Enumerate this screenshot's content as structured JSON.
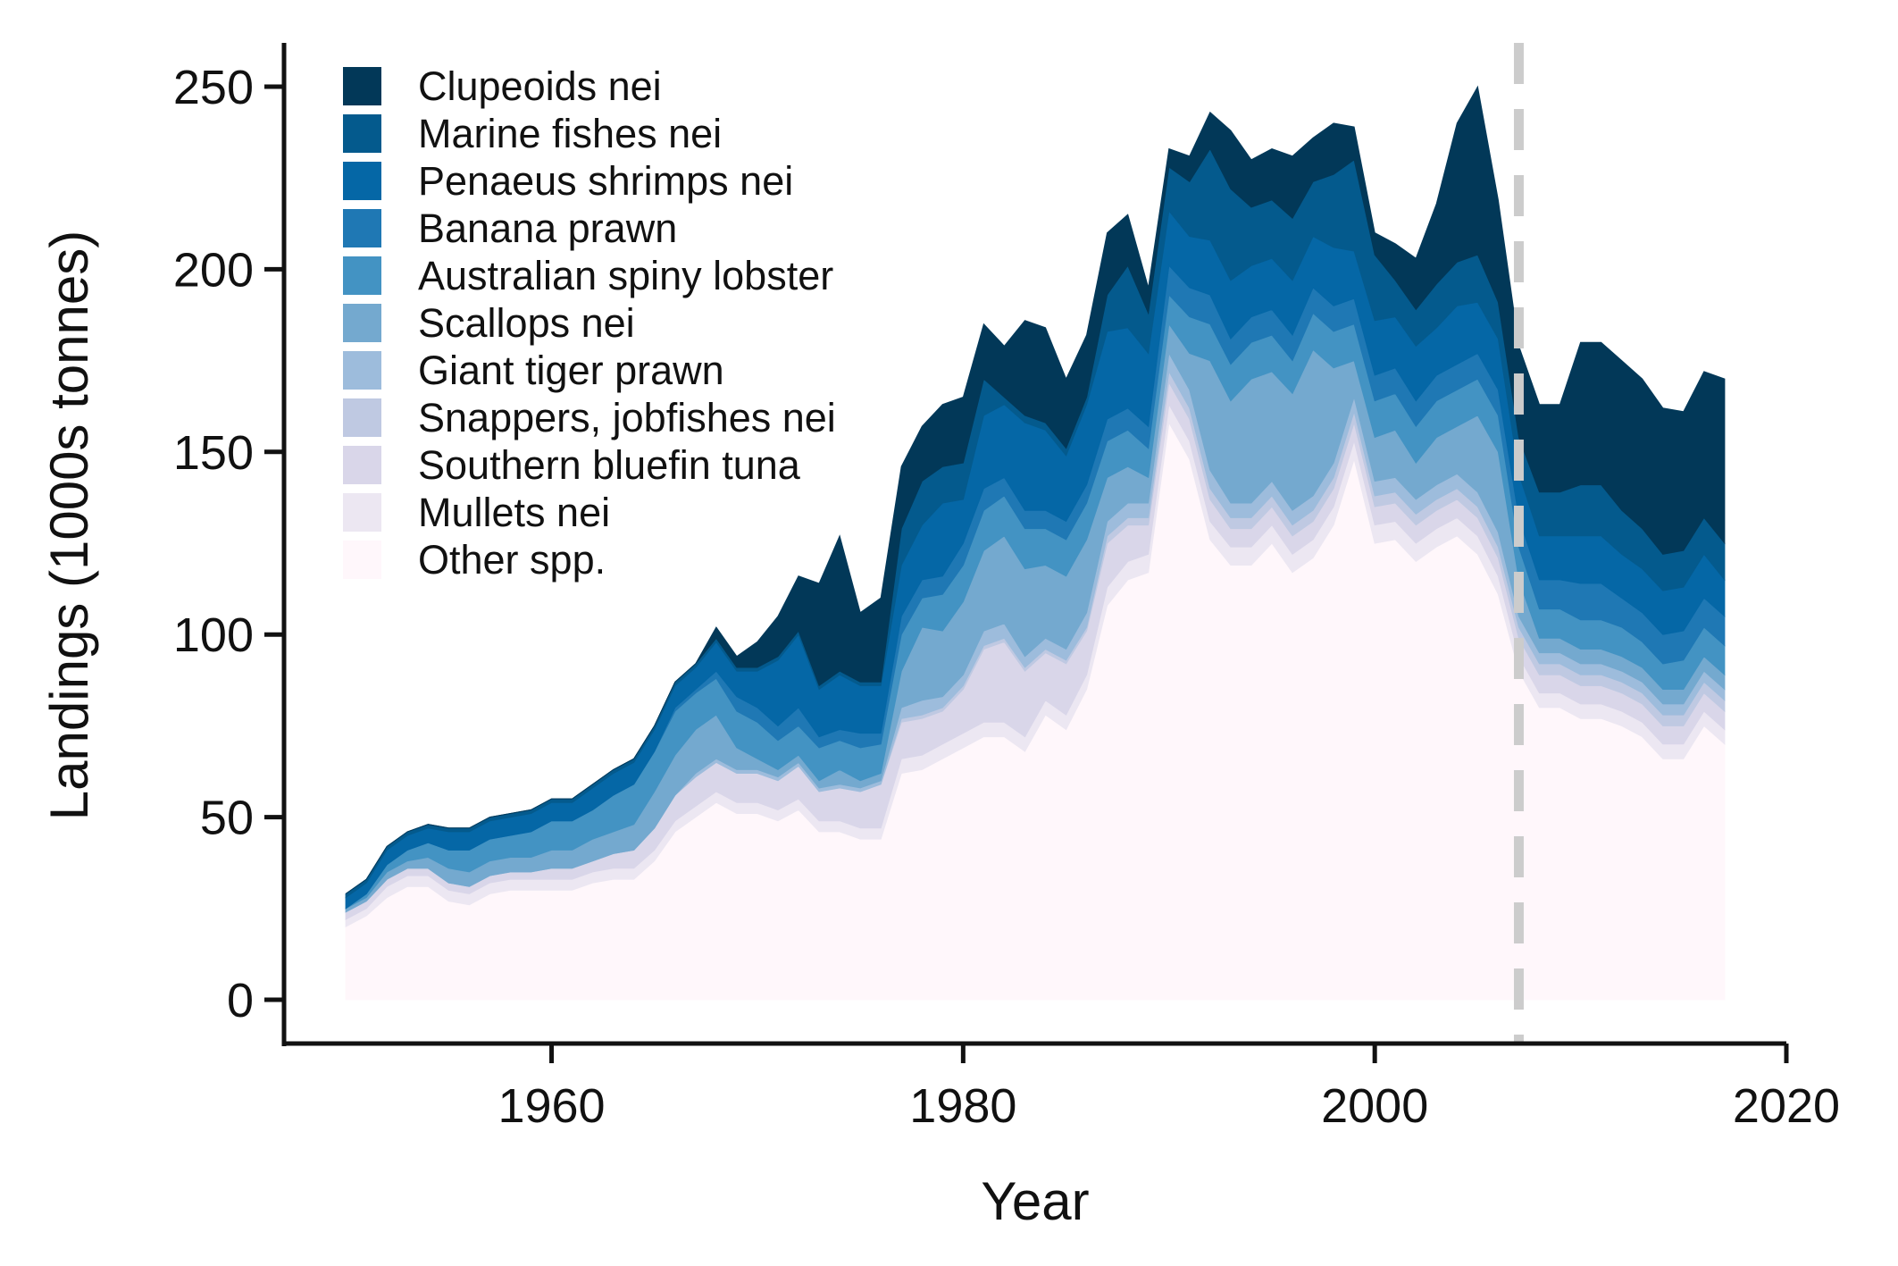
{
  "chart_data": {
    "type": "area",
    "stacked": true,
    "xlabel": "Year",
    "ylabel": "Landings (1000s tonnes)",
    "xlim": [
      1947,
      2020
    ],
    "ylim": [
      -12,
      262
    ],
    "x_ticks": [
      1960,
      1980,
      2000,
      2020
    ],
    "y_ticks": [
      0,
      50,
      100,
      150,
      200,
      250
    ],
    "grid": false,
    "legend_position": "top-left",
    "reference_line": {
      "x": 2007,
      "style": "dashed",
      "color": "#cccccc"
    },
    "keyframes": [
      1950,
      1951,
      1952,
      1953,
      1954,
      1955,
      1956,
      1957,
      1958,
      1959,
      1960,
      1961,
      1962,
      1963,
      1964,
      1965,
      1966,
      1967,
      1968,
      1969,
      1970,
      1971,
      1972,
      1973,
      1974,
      1975,
      1976,
      1977,
      1978,
      1979,
      1980,
      1981,
      1982,
      1983,
      1984,
      1985,
      1986,
      1987,
      1988,
      1989,
      1990,
      1991,
      1992,
      1993,
      1994,
      1995,
      1996,
      1997,
      1998,
      1999,
      2000,
      2001,
      2002,
      2003,
      2004,
      2005,
      2006,
      2007,
      2008,
      2009,
      2010,
      2011,
      2012,
      2013,
      2014,
      2015,
      2016,
      2017
    ],
    "legend_order": [
      "Clupeoids nei",
      "Marine fishes nei",
      "Penaeus shrimps nei",
      "Banana prawn",
      "Australian spiny lobster",
      "Scallops nei",
      "Giant tiger prawn",
      "Snappers, jobfishes nei",
      "Southern bluefin tuna",
      "Mullets nei",
      "Other spp."
    ],
    "series": [
      {
        "name": "Other spp.",
        "color": "#fff7fb",
        "values": [
          20,
          23,
          28,
          31,
          31,
          27,
          26,
          29,
          30,
          30,
          30,
          30,
          32,
          33,
          33,
          38,
          46,
          50,
          54,
          51,
          51,
          49,
          52,
          46,
          46,
          44,
          44,
          62,
          63,
          66,
          69,
          72,
          72,
          68,
          78,
          74,
          85,
          108,
          115,
          117,
          158,
          148,
          126,
          119,
          119,
          125,
          117,
          121,
          130,
          148,
          125,
          126,
          120,
          124,
          127,
          122,
          111,
          90,
          80,
          80,
          77,
          77,
          75,
          72,
          66,
          66,
          75,
          70
        ]
      },
      {
        "name": "Mullets nei",
        "color": "#ece7f2",
        "values": [
          2,
          2,
          3,
          3,
          3,
          3,
          3,
          3,
          3,
          3,
          3,
          3,
          3,
          3,
          3,
          3,
          3,
          3,
          3,
          3,
          3,
          3,
          3,
          3,
          3,
          3,
          3,
          4,
          4,
          4,
          4,
          4,
          4,
          4,
          4,
          4,
          4,
          5,
          5,
          5,
          5,
          5,
          5,
          5,
          5,
          5,
          5,
          5,
          5,
          5,
          5,
          5,
          5,
          5,
          5,
          5,
          5,
          4,
          4,
          4,
          4,
          4,
          4,
          4,
          4,
          4,
          4,
          4
        ]
      },
      {
        "name": "Southern bluefin tuna",
        "color": "#d9d6e9",
        "values": [
          2,
          2,
          2,
          2,
          2,
          2,
          2,
          2,
          2,
          2,
          3,
          3,
          3,
          4,
          5,
          6,
          7,
          8,
          8,
          8,
          8,
          8,
          9,
          8,
          9,
          10,
          12,
          10,
          10,
          9,
          12,
          20,
          22,
          18,
          13,
          14,
          12,
          12,
          10,
          8,
          6,
          6,
          6,
          5,
          5,
          5,
          5,
          5,
          5,
          5,
          5,
          5,
          5,
          5,
          5,
          5,
          5,
          5,
          5,
          5,
          5,
          5,
          5,
          5,
          5,
          5,
          5,
          5
        ]
      },
      {
        "name": "Snappers, jobfishes nei",
        "color": "#bfc9e2",
        "values": [
          0,
          0,
          0,
          0,
          0,
          0,
          0,
          0,
          0,
          0,
          0,
          0,
          0,
          0,
          0,
          0,
          0,
          0,
          0,
          0,
          0,
          0,
          0,
          0,
          0,
          0,
          0,
          1,
          1,
          1,
          1,
          1,
          1,
          1,
          1,
          1,
          1,
          2,
          2,
          2,
          3,
          3,
          3,
          3,
          3,
          3,
          3,
          3,
          3,
          3,
          3,
          3,
          3,
          3,
          3,
          3,
          3,
          3,
          3,
          3,
          3,
          3,
          3,
          3,
          3,
          3,
          3,
          3
        ]
      },
      {
        "name": "Giant tiger prawn",
        "color": "#9dbcdc",
        "values": [
          0,
          0,
          0,
          0,
          0,
          0,
          0,
          0,
          0,
          0,
          0,
          0,
          0,
          0,
          0,
          0,
          0,
          1,
          1,
          1,
          1,
          1,
          1,
          1,
          1,
          1,
          1,
          3,
          4,
          3,
          3,
          4,
          4,
          3,
          3,
          3,
          4,
          4,
          4,
          4,
          5,
          5,
          5,
          4,
          4,
          4,
          4,
          4,
          4,
          4,
          4,
          4,
          4,
          4,
          4,
          4,
          4,
          3,
          3,
          3,
          3,
          3,
          3,
          3,
          3,
          3,
          3,
          3
        ]
      },
      {
        "name": "Scallops nei",
        "color": "#74a9cf",
        "values": [
          1,
          1,
          2,
          2,
          3,
          4,
          4,
          4,
          4,
          4,
          5,
          5,
          6,
          6,
          7,
          10,
          11,
          12,
          12,
          6,
          3,
          2,
          2,
          2,
          4,
          2,
          2,
          10,
          20,
          18,
          20,
          22,
          24,
          24,
          20,
          20,
          20,
          12,
          10,
          7,
          8,
          10,
          30,
          28,
          34,
          30,
          32,
          40,
          26,
          10,
          12,
          13,
          10,
          13,
          13,
          21,
          22,
          10,
          4,
          4,
          4,
          4,
          4,
          4,
          4,
          4,
          4,
          4
        ]
      },
      {
        "name": "Australian spiny lobster",
        "color": "#4393c3",
        "values": [
          0,
          1,
          2,
          3,
          4,
          5,
          6,
          6,
          6,
          7,
          8,
          8,
          8,
          10,
          11,
          11,
          12,
          10,
          10,
          10,
          10,
          8,
          8,
          9,
          8,
          9,
          8,
          10,
          8,
          10,
          10,
          11,
          11,
          11,
          10,
          10,
          10,
          10,
          10,
          8,
          8,
          10,
          10,
          10,
          10,
          10,
          9,
          10,
          10,
          10,
          10,
          10,
          10,
          10,
          10,
          10,
          10,
          9,
          8,
          8,
          8,
          8,
          8,
          7,
          7,
          8,
          8,
          8
        ]
      },
      {
        "name": "Banana prawn",
        "color": "#1f78b4",
        "values": [
          0,
          0,
          0,
          0,
          0,
          0,
          0,
          0,
          0,
          0,
          0,
          0,
          0,
          0,
          0,
          0,
          1,
          1,
          2,
          4,
          4,
          4,
          5,
          3,
          3,
          4,
          3,
          5,
          5,
          5,
          6,
          6,
          5,
          5,
          5,
          5,
          5,
          6,
          6,
          6,
          8,
          8,
          8,
          7,
          7,
          7,
          7,
          7,
          7,
          7,
          7,
          7,
          7,
          7,
          7,
          7,
          7,
          8,
          8,
          8,
          10,
          10,
          8,
          8,
          8,
          8,
          8,
          8
        ]
      },
      {
        "name": "Penaeus shrimps nei",
        "color": "#0567a6",
        "values": [
          3,
          3,
          4,
          4,
          4,
          5,
          5,
          5,
          5,
          5,
          5,
          5,
          6,
          6,
          6,
          6,
          6,
          6,
          8,
          7,
          10,
          18,
          20,
          13,
          15,
          13,
          13,
          14,
          15,
          20,
          12,
          20,
          20,
          24,
          22,
          18,
          22,
          24,
          22,
          20,
          15,
          14,
          15,
          16,
          14,
          14,
          15,
          14,
          16,
          13,
          15,
          14,
          15,
          13,
          16,
          14,
          14,
          12,
          12,
          12,
          13,
          13,
          12,
          12,
          12,
          12,
          12,
          10
        ]
      },
      {
        "name": "Marine fishes nei",
        "color": "#045a8d",
        "values": [
          1,
          1,
          1,
          1,
          1,
          1,
          1,
          1,
          1,
          1,
          1,
          1,
          1,
          1,
          1,
          1,
          1,
          1,
          1,
          1,
          1,
          1,
          1,
          1,
          1,
          1,
          1,
          10,
          12,
          10,
          10,
          10,
          2,
          2,
          2,
          2,
          2,
          10,
          17,
          11,
          12,
          15,
          25,
          25,
          16,
          16,
          17,
          15,
          20,
          25,
          18,
          10,
          10,
          12,
          12,
          13,
          10,
          10,
          12,
          12,
          14,
          14,
          12,
          11,
          10,
          10,
          10,
          10
        ]
      },
      {
        "name": "Clupeoids nei",
        "color": "#023858",
        "values": [
          0,
          0,
          0,
          0,
          0,
          0,
          0,
          0,
          0,
          0,
          0,
          0,
          0,
          0,
          0,
          0,
          0,
          0,
          3,
          3,
          7,
          11,
          15,
          28,
          37,
          19,
          23,
          17,
          15,
          17,
          18,
          15,
          14,
          26,
          26,
          19,
          17,
          17,
          14,
          7,
          5,
          7,
          10,
          16,
          13,
          14,
          17,
          12,
          14,
          9,
          6,
          10,
          14,
          22,
          38,
          46,
          28,
          25,
          24,
          24,
          39,
          39,
          41,
          41,
          40,
          38,
          40,
          45
        ]
      }
    ]
  }
}
